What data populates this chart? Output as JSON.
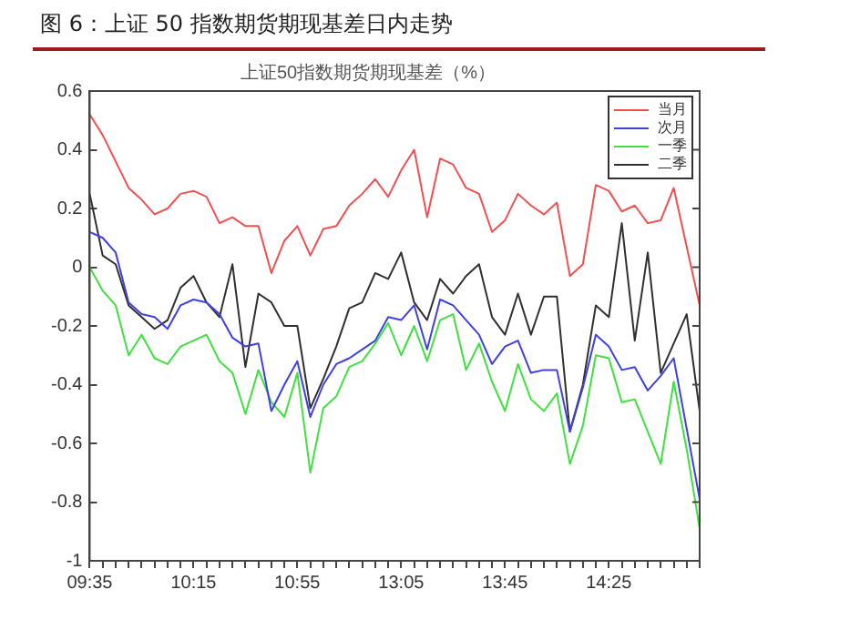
{
  "chart_data": {
    "type": "line",
    "title": "图 6：上证 50 指数期货期现基差日内走势",
    "subtitle": "上证50指数期货期现基差（%）",
    "categories": [
      "09:35",
      null,
      null,
      null,
      null,
      null,
      null,
      null,
      "10:15",
      null,
      null,
      null,
      null,
      null,
      null,
      null,
      "10:55",
      null,
      null,
      null,
      null,
      null,
      null,
      null,
      "13:05",
      null,
      null,
      null,
      null,
      null,
      null,
      null,
      "13:45",
      null,
      null,
      null,
      null,
      null,
      null,
      null,
      "14:25",
      null,
      null,
      null,
      null,
      null,
      null,
      null
    ],
    "series": [
      {
        "name": "当月",
        "color": "#f05050",
        "values": [
          0.52,
          0.45,
          0.36,
          0.27,
          0.23,
          0.18,
          0.2,
          0.25,
          0.26,
          0.24,
          0.15,
          0.17,
          0.14,
          0.14,
          -0.02,
          0.09,
          0.14,
          0.04,
          0.13,
          0.14,
          0.21,
          0.25,
          0.3,
          0.24,
          0.33,
          0.4,
          0.17,
          0.37,
          0.35,
          0.27,
          0.25,
          0.12,
          0.16,
          0.25,
          0.21,
          0.18,
          0.22,
          -0.03,
          0.01,
          0.28,
          0.26,
          0.19,
          0.21,
          0.15,
          0.16,
          0.27,
          0.07,
          -0.13
        ]
      },
      {
        "name": "次月",
        "color": "#4040e0",
        "values": [
          0.12,
          0.1,
          0.05,
          -0.12,
          -0.16,
          -0.17,
          -0.21,
          -0.13,
          -0.11,
          -0.12,
          -0.16,
          -0.24,
          -0.27,
          -0.26,
          -0.49,
          -0.4,
          -0.32,
          -0.51,
          -0.4,
          -0.33,
          -0.31,
          -0.28,
          -0.25,
          -0.17,
          -0.18,
          -0.13,
          -0.28,
          -0.11,
          -0.13,
          -0.18,
          -0.23,
          -0.33,
          -0.27,
          -0.25,
          -0.36,
          -0.35,
          -0.35,
          -0.56,
          -0.41,
          -0.23,
          -0.27,
          -0.35,
          -0.34,
          -0.42,
          -0.37,
          -0.31,
          -0.55,
          -0.79
        ]
      },
      {
        "name": "一季",
        "color": "#40e040",
        "values": [
          0,
          -0.08,
          -0.13,
          -0.3,
          -0.23,
          -0.31,
          -0.33,
          -0.27,
          -0.25,
          -0.23,
          -0.32,
          -0.36,
          -0.5,
          -0.35,
          -0.46,
          -0.51,
          -0.36,
          -0.7,
          -0.48,
          -0.44,
          -0.34,
          -0.32,
          -0.26,
          -0.19,
          -0.3,
          -0.2,
          -0.32,
          -0.18,
          -0.16,
          -0.35,
          -0.26,
          -0.39,
          -0.49,
          -0.33,
          -0.45,
          -0.49,
          -0.43,
          -0.67,
          -0.54,
          -0.3,
          -0.31,
          -0.46,
          -0.45,
          -0.56,
          -0.67,
          -0.39,
          -0.62,
          -0.89
        ]
      },
      {
        "name": "二季",
        "color": "#303030",
        "values": [
          0.25,
          0.04,
          0.01,
          -0.13,
          -0.17,
          -0.21,
          -0.18,
          -0.07,
          -0.03,
          -0.12,
          -0.17,
          0.01,
          -0.34,
          -0.09,
          -0.12,
          -0.2,
          -0.2,
          -0.48,
          -0.38,
          -0.27,
          -0.14,
          -0.12,
          -0.02,
          -0.04,
          0.05,
          -0.12,
          -0.18,
          -0.04,
          -0.09,
          -0.03,
          0.01,
          -0.17,
          -0.23,
          -0.09,
          -0.23,
          -0.1,
          -0.1,
          -0.56,
          -0.4,
          -0.13,
          -0.17,
          0.15,
          -0.25,
          0.05,
          -0.36,
          -0.26,
          -0.16,
          -0.49
        ]
      }
    ],
    "ylim": [
      -1,
      0.6
    ],
    "yticks": [
      -1,
      -0.8,
      -0.6,
      -0.4,
      -0.2,
      0,
      0.2,
      0.4,
      0.6
    ],
    "grid": false,
    "legend": "top right",
    "marker": "none",
    "line_style": "solid"
  }
}
